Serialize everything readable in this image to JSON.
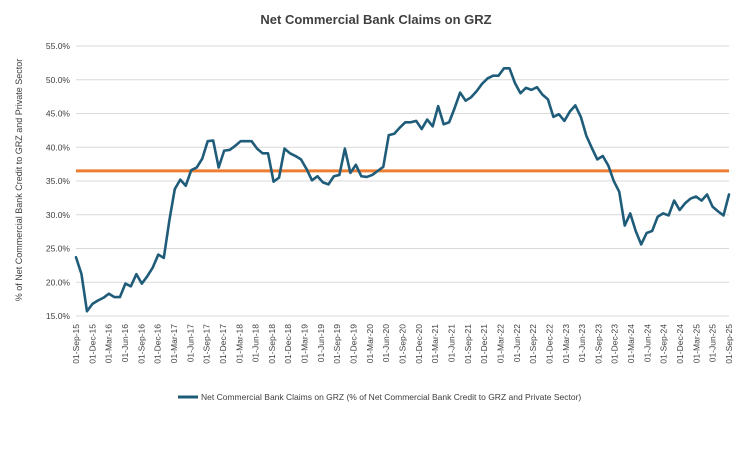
{
  "chart_data": {
    "type": "line",
    "title": "Net Commercial Bank Claims on GRZ",
    "ylabel": "% of Net Commercial Bank Credit to GRZ and Private Sector",
    "xlabel": "",
    "ylim": [
      15,
      55
    ],
    "yticks": [
      "15.0%",
      "20.0%",
      "25.0%",
      "30.0%",
      "35.0%",
      "40.0%",
      "45.0%",
      "50.0%",
      "55.0%"
    ],
    "yticks_values": [
      15,
      20,
      25,
      30,
      35,
      40,
      45,
      50,
      55
    ],
    "xticks": [
      "01-Sep-15",
      "01-Dec-15",
      "01-Mar-16",
      "01-Jun-16",
      "01-Sep-16",
      "01-Dec-16",
      "01-Mar-17",
      "01-Jun-17",
      "01-Sep-17",
      "01-Dec-17",
      "01-Mar-18",
      "01-Jun-18",
      "01-Sep-18",
      "01-Dec-18",
      "01-Mar-19",
      "01-Jun-19",
      "01-Sep-19",
      "01-Dec-19",
      "01-Mar-20",
      "01-Jun-20",
      "01-Sep-20",
      "01-Dec-20",
      "01-Mar-21",
      "01-Jun-21",
      "01-Sep-21",
      "01-Dec-21",
      "01-Mar-22",
      "01-Jun-22",
      "01-Sep-22",
      "01-Dec-22",
      "01-Mar-23",
      "01-Jun-23",
      "01-Sep-23",
      "01-Dec-23",
      "01-Mar-24",
      "01-Jun-24",
      "01-Sep-24",
      "01-Dec-24",
      "01-Mar-25",
      "01-Jun-25",
      "01-Sep-25"
    ],
    "reference_line": {
      "value": 36.5,
      "color": "#ed7d31"
    },
    "series": [
      {
        "name": "Net Commercial Bank Claims on GRZ (% of Net Commercial Bank Credit to GRZ and Private Sector)",
        "color": "#1f5c7a",
        "values": [
          23.7,
          21.2,
          15.7,
          16.8,
          17.3,
          17.7,
          18.3,
          17.8,
          17.8,
          19.8,
          19.4,
          21.2,
          19.8,
          20.9,
          22.2,
          24.1,
          23.6,
          29.1,
          33.8,
          35.2,
          34.3,
          36.6,
          37.0,
          38.3,
          40.9,
          41.0,
          37.0,
          39.5,
          39.6,
          40.2,
          40.9,
          40.9,
          40.9,
          39.8,
          39.1,
          39.1,
          34.9,
          35.5,
          39.8,
          39.1,
          38.7,
          38.2,
          36.8,
          35.1,
          35.7,
          34.8,
          34.5,
          35.7,
          35.9,
          39.8,
          36.2,
          37.4,
          35.7,
          35.6,
          35.9,
          36.5,
          37.1,
          41.8,
          42.0,
          42.9,
          43.7,
          43.7,
          43.9,
          42.7,
          44.1,
          43.1,
          46.1,
          43.4,
          43.7,
          45.8,
          48.1,
          46.9,
          47.4,
          48.3,
          49.4,
          50.2,
          50.6,
          50.6,
          51.7,
          51.7,
          49.5,
          48.0,
          48.8,
          48.5,
          48.9,
          47.8,
          47.1,
          44.5,
          44.9,
          43.9,
          45.3,
          46.2,
          44.5,
          41.7,
          39.9,
          38.2,
          38.7,
          37.3,
          35.0,
          33.4,
          28.4,
          30.2,
          27.6,
          25.6,
          27.3,
          27.6,
          29.7,
          30.2,
          29.9,
          32.1,
          30.7,
          31.7,
          32.4,
          32.7,
          32.1,
          33.0,
          31.2,
          30.5,
          29.9,
          33.0
        ]
      }
    ],
    "legend": {
      "position": "bottom"
    },
    "grid": true
  }
}
